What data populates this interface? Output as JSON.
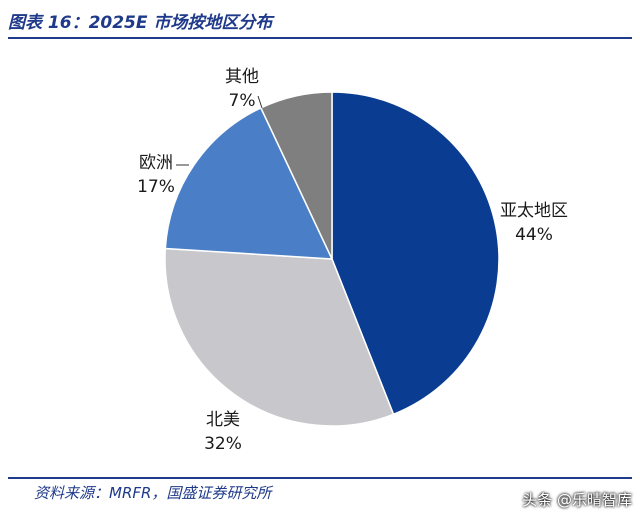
{
  "header": {
    "title": "图表 16：2025E 市场按地区分布"
  },
  "footer": {
    "source": "资料来源：MRFR，国盛证券研究所",
    "watermark": "头条 @乐晴智库"
  },
  "chart_data": {
    "type": "pie",
    "title": "",
    "slices": [
      {
        "name": "亚太地区",
        "value": 44,
        "label": "44%",
        "color": "#0a3d91"
      },
      {
        "name": "北美",
        "value": 32,
        "label": "32%",
        "color": "#c8c8cc"
      },
      {
        "name": "欧洲",
        "value": 17,
        "label": "17%",
        "color": "#4a7fc8"
      },
      {
        "name": "其他",
        "value": 7,
        "label": "7%",
        "color": "#7f7f7f"
      }
    ],
    "start_angle_deg": 0,
    "direction": "clockwise"
  }
}
